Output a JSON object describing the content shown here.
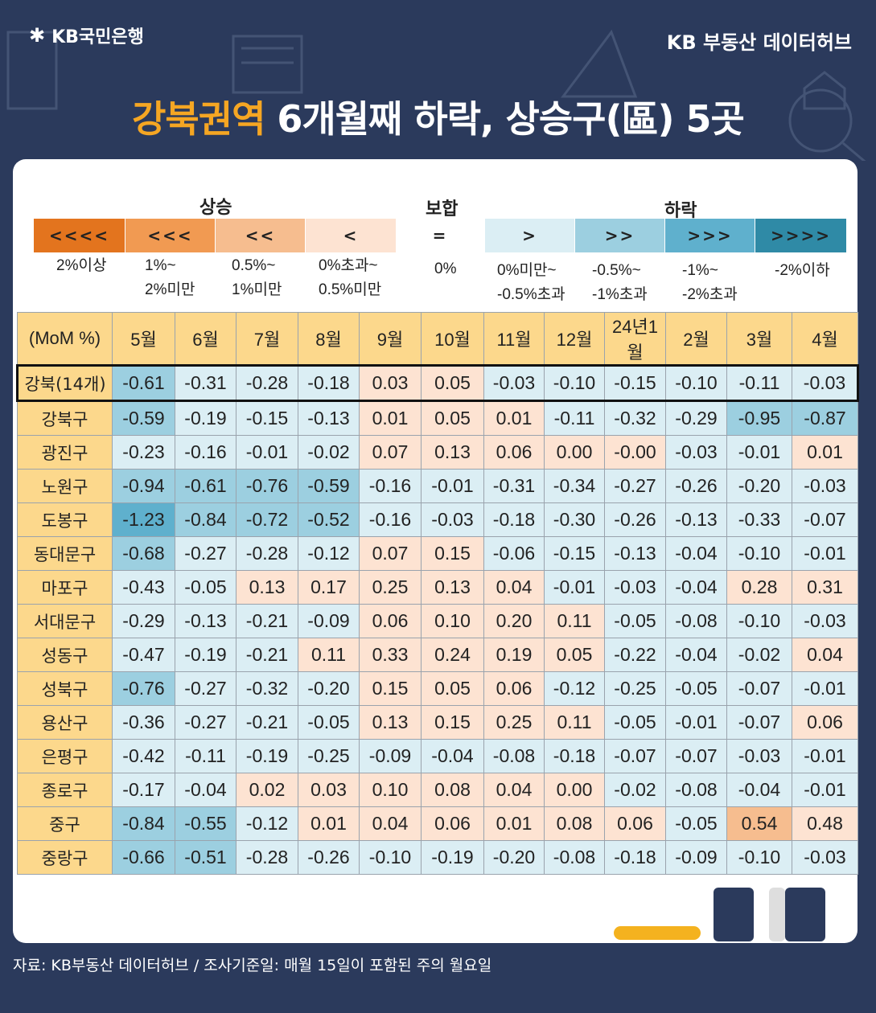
{
  "header": {
    "logo_text": "KB국민은행",
    "brand": "KB 부동산  데이터허브",
    "title_highlight": "강북권역",
    "title_rest": " 6개월째 하락, 상승구(區) 5곳"
  },
  "legend": {
    "group_rise": "상승",
    "group_flat": "보합",
    "group_fall": "하락",
    "items": [
      {
        "symbol": "<<<<",
        "label": "2%이상",
        "color": "#e3741e"
      },
      {
        "symbol": "<<<",
        "label": "1%~\n2%미만",
        "color": "#f19a52"
      },
      {
        "symbol": "<<",
        "label": "0.5%~\n1%미만",
        "color": "#f6bd8f"
      },
      {
        "symbol": "<",
        "label": "0%초과~\n0.5%미만",
        "color": "#fde3d2"
      },
      {
        "symbol": "=",
        "label": "0%",
        "color": "#ffffff"
      },
      {
        "symbol": ">",
        "label": "0%미만~\n-0.5%초과",
        "color": "#dbeef4"
      },
      {
        "symbol": ">>",
        "label": "-0.5%~\n-1%초과",
        "color": "#9ccfe0"
      },
      {
        "symbol": ">>>",
        "label": "-1%~\n-2%초과",
        "color": "#5fb0cd"
      },
      {
        "symbol": ">>>>",
        "label": "-2%이하",
        "color": "#2f8aa6"
      }
    ]
  },
  "chart_data": {
    "type": "heatmap",
    "title": "강북권역 6개월째 하락, 상승구(區) 5곳",
    "corner_label": "(MoM %)",
    "columns": [
      "5월",
      "6월",
      "7월",
      "8월",
      "9월",
      "10월",
      "11월",
      "12월",
      "24년1월",
      "2월",
      "3월",
      "4월"
    ],
    "rows": [
      {
        "name": "강북(14개)",
        "values": [
          "-0.61",
          "-0.31",
          "-0.28",
          "-0.18",
          "0.03",
          "0.05",
          "-0.03",
          "-0.10",
          "-0.15",
          "-0.10",
          "-0.11",
          "-0.03"
        ]
      },
      {
        "name": "강북구",
        "values": [
          "-0.59",
          "-0.19",
          "-0.15",
          "-0.13",
          "0.01",
          "0.05",
          "0.01",
          "-0.11",
          "-0.32",
          "-0.29",
          "-0.95",
          "-0.87"
        ]
      },
      {
        "name": "광진구",
        "values": [
          "-0.23",
          "-0.16",
          "-0.01",
          "-0.02",
          "0.07",
          "0.13",
          "0.06",
          "0.00",
          "-0.00",
          "-0.03",
          "-0.01",
          "0.01"
        ]
      },
      {
        "name": "노원구",
        "values": [
          "-0.94",
          "-0.61",
          "-0.76",
          "-0.59",
          "-0.16",
          "-0.01",
          "-0.31",
          "-0.34",
          "-0.27",
          "-0.26",
          "-0.20",
          "-0.03"
        ]
      },
      {
        "name": "도봉구",
        "values": [
          "-1.23",
          "-0.84",
          "-0.72",
          "-0.52",
          "-0.16",
          "-0.03",
          "-0.18",
          "-0.30",
          "-0.26",
          "-0.13",
          "-0.33",
          "-0.07"
        ]
      },
      {
        "name": "동대문구",
        "values": [
          "-0.68",
          "-0.27",
          "-0.28",
          "-0.12",
          "0.07",
          "0.15",
          "-0.06",
          "-0.15",
          "-0.13",
          "-0.04",
          "-0.10",
          "-0.01"
        ]
      },
      {
        "name": "마포구",
        "values": [
          "-0.43",
          "-0.05",
          "0.13",
          "0.17",
          "0.25",
          "0.13",
          "0.04",
          "-0.01",
          "-0.03",
          "-0.04",
          "0.28",
          "0.31"
        ]
      },
      {
        "name": "서대문구",
        "values": [
          "-0.29",
          "-0.13",
          "-0.21",
          "-0.09",
          "0.06",
          "0.10",
          "0.20",
          "0.11",
          "-0.05",
          "-0.08",
          "-0.10",
          "-0.03"
        ]
      },
      {
        "name": "성동구",
        "values": [
          "-0.47",
          "-0.19",
          "-0.21",
          "0.11",
          "0.33",
          "0.24",
          "0.19",
          "0.05",
          "-0.22",
          "-0.04",
          "-0.02",
          "0.04"
        ]
      },
      {
        "name": "성북구",
        "values": [
          "-0.76",
          "-0.27",
          "-0.32",
          "-0.20",
          "0.15",
          "0.05",
          "0.06",
          "-0.12",
          "-0.25",
          "-0.05",
          "-0.07",
          "-0.01"
        ]
      },
      {
        "name": "용산구",
        "values": [
          "-0.36",
          "-0.27",
          "-0.21",
          "-0.05",
          "0.13",
          "0.15",
          "0.25",
          "0.11",
          "-0.05",
          "-0.01",
          "-0.07",
          "0.06"
        ]
      },
      {
        "name": "은평구",
        "values": [
          "-0.42",
          "-0.11",
          "-0.19",
          "-0.25",
          "-0.09",
          "-0.04",
          "-0.08",
          "-0.18",
          "-0.07",
          "-0.07",
          "-0.03",
          "-0.01"
        ]
      },
      {
        "name": "종로구",
        "values": [
          "-0.17",
          "-0.04",
          "0.02",
          "0.03",
          "0.10",
          "0.08",
          "0.04",
          "0.00",
          "-0.02",
          "-0.08",
          "-0.04",
          "-0.01"
        ]
      },
      {
        "name": "중구",
        "values": [
          "-0.84",
          "-0.55",
          "-0.12",
          "0.01",
          "0.04",
          "0.06",
          "0.01",
          "0.08",
          "0.06",
          "-0.05",
          "0.54",
          "0.48"
        ]
      },
      {
        "name": "중랑구",
        "values": [
          "-0.66",
          "-0.51",
          "-0.28",
          "-0.26",
          "-0.10",
          "-0.19",
          "-0.20",
          "-0.08",
          "-0.18",
          "-0.09",
          "-0.10",
          "-0.03"
        ]
      }
    ],
    "color_scale": {
      "rise_lt_0_5": "#fde3d2",
      "rise_0_5_to_1": "#f6bd8f",
      "zero": "#ffffff",
      "fall_lt_0_5": "#dbeef4",
      "fall_0_5_to_1": "#9ccfe0",
      "fall_1_to_2": "#5fb0cd"
    }
  },
  "footer": {
    "source": "자료: KB부동산 데이터허브 / 조사기준일: 매월 15일이 포함된 주의 월요일"
  }
}
